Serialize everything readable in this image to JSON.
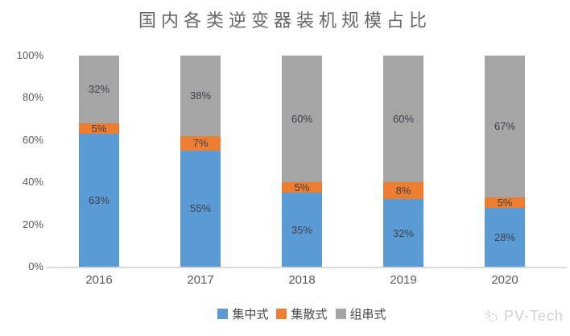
{
  "chart_data": {
    "type": "bar",
    "stacked": true,
    "title": "国内各类逆变器装机规模占比",
    "categories": [
      "2016",
      "2017",
      "2018",
      "2019",
      "2020"
    ],
    "series": [
      {
        "name": "集中式",
        "color": "#5B9BD5",
        "values": [
          63,
          55,
          35,
          32,
          28
        ]
      },
      {
        "name": "集散式",
        "color": "#ED7D31",
        "values": [
          5,
          7,
          5,
          8,
          5
        ]
      },
      {
        "name": "组串式",
        "color": "#A5A5A5",
        "values": [
          32,
          38,
          60,
          60,
          67
        ]
      }
    ],
    "value_suffix": "%",
    "y_ticks": [
      "100%",
      "80%",
      "60%",
      "40%",
      "20%",
      "0%"
    ],
    "ylim": [
      0,
      100
    ],
    "grid": false,
    "legend_position": "bottom"
  },
  "watermark": {
    "text": "PV-Tech",
    "icon": "sun-doodle-icon"
  },
  "colors": {
    "axis_line": "#D9D9D9",
    "axis_text": "#595959",
    "segment_label_text": "#404049",
    "title_text": "#666666",
    "watermark_text": "#CDD1D5"
  }
}
